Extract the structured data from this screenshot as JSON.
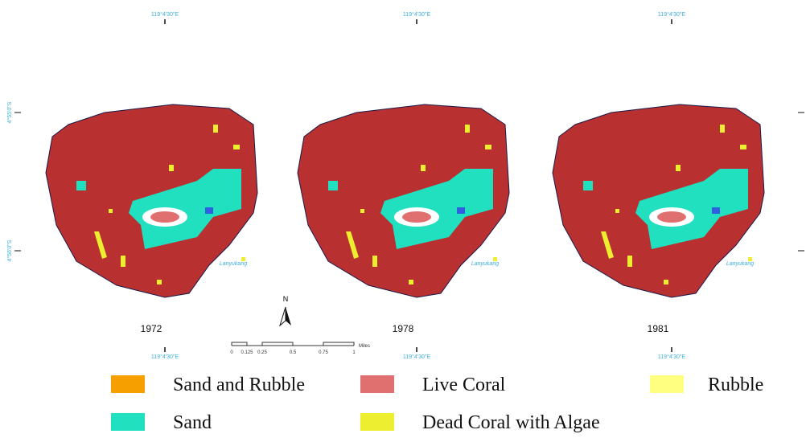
{
  "maps": [
    {
      "year": "1972",
      "top_label": "119°4'30\"E",
      "bottom_label": "119°4'30\"E",
      "place_label": "Lanyukang"
    },
    {
      "year": "1978",
      "top_label": "119°4'30\"E",
      "bottom_label": "119°4'30\"E",
      "place_label": "Lanyukang"
    },
    {
      "year": "1981",
      "top_label": "119°4'30\"E",
      "bottom_label": "119°4'30\"E",
      "place_label": "Lanyukang"
    }
  ],
  "left_labels": [
    "4°55'0\"S",
    "4°56'0\"S"
  ],
  "north": "N",
  "scale_bar": {
    "ticks": [
      "0",
      "0.125",
      "0.25",
      "0.5",
      "0.75",
      "1"
    ],
    "unit": "Miles"
  },
  "legend": [
    {
      "label": "Sand and Rubble",
      "color": "#f5a000"
    },
    {
      "label": "Live Coral",
      "color": "#e07070"
    },
    {
      "label": "Rubble",
      "color": "#ffff80"
    },
    {
      "label": "Sand",
      "color": "#20e0c0"
    },
    {
      "label": "Dead Coral with Algae",
      "color": "#eeee30"
    }
  ]
}
